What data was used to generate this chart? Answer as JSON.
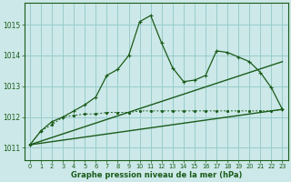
{
  "background_color": "#cce8e8",
  "grid_color": "#99cccc",
  "line_color_main": "#1a5c1a",
  "xlabel": "Graphe pression niveau de la mer (hPa)",
  "xlim": [
    -0.5,
    23.5
  ],
  "ylim": [
    1010.6,
    1015.7
  ],
  "yticks": [
    1011,
    1012,
    1013,
    1014,
    1015
  ],
  "xticks": [
    0,
    1,
    2,
    3,
    4,
    5,
    6,
    7,
    8,
    9,
    10,
    11,
    12,
    13,
    14,
    15,
    16,
    17,
    18,
    19,
    20,
    21,
    22,
    23
  ],
  "series1_x": [
    0,
    1,
    2,
    3,
    4,
    5,
    6,
    7,
    8,
    9,
    10,
    11,
    12,
    13,
    14,
    15,
    16,
    17,
    18,
    19,
    20,
    21,
    22,
    23
  ],
  "series1_y": [
    1011.1,
    1011.55,
    1011.85,
    1012.0,
    1012.2,
    1012.4,
    1012.65,
    1013.35,
    1013.55,
    1014.0,
    1015.1,
    1015.3,
    1014.4,
    1013.6,
    1013.15,
    1013.2,
    1013.35,
    1014.15,
    1014.1,
    1013.95,
    1013.8,
    1013.45,
    1012.95,
    1012.25
  ],
  "series2_x": [
    0,
    1,
    2,
    3,
    4,
    5,
    6,
    7,
    8,
    9,
    10,
    11,
    12,
    13,
    14,
    15,
    16,
    17,
    18,
    19,
    20,
    21,
    22,
    23
  ],
  "series2_y": [
    1011.1,
    1011.55,
    1011.75,
    1012.0,
    1012.05,
    1012.1,
    1012.1,
    1012.15,
    1012.15,
    1012.15,
    1012.2,
    1012.2,
    1012.2,
    1012.2,
    1012.2,
    1012.2,
    1012.2,
    1012.2,
    1012.2,
    1012.2,
    1012.2,
    1012.2,
    1012.2,
    1012.25
  ],
  "series3_x": [
    0,
    23
  ],
  "series3_y": [
    1011.1,
    1012.25
  ],
  "series4_x": [
    0,
    23
  ],
  "series4_y": [
    1011.1,
    1013.8
  ]
}
